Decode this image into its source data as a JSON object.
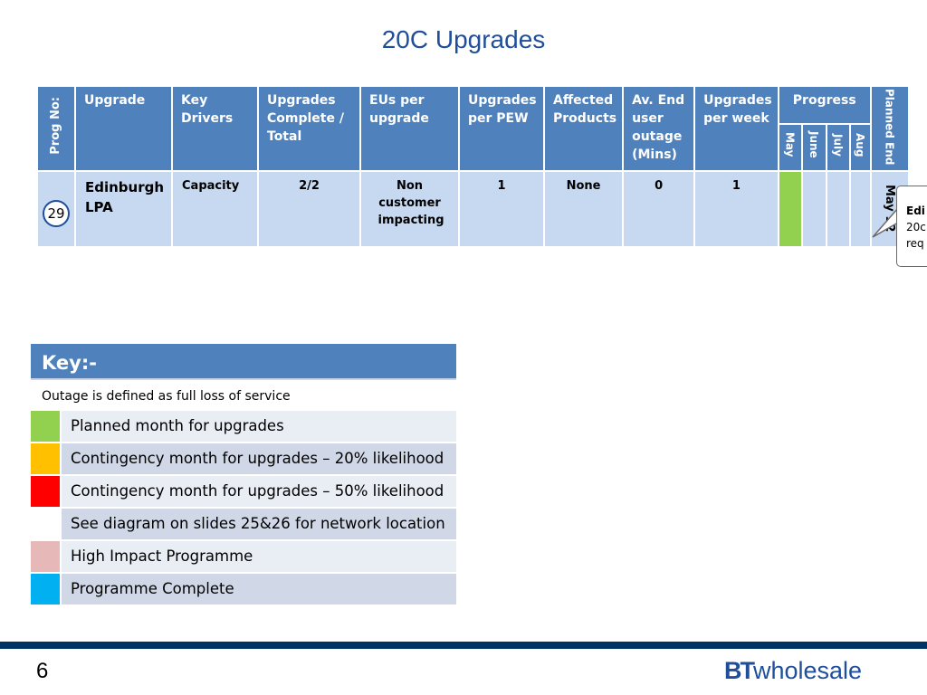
{
  "title": "20C Upgrades",
  "table": {
    "headers": {
      "prog_no": "Prog No:",
      "upgrade": "Upgrade",
      "key_drivers": "Key Drivers",
      "upgrades_complete": "Upgrades Complete / Total",
      "eus_per_upgrade": "EUs per upgrade",
      "upgrades_per_pew": "Upgrades per PEW",
      "affected_products": "Affected Products",
      "av_end_user_outage": "Av. End user outage (Mins)",
      "upgrades_per_week": "Upgrades per week",
      "progress": "Progress",
      "months": [
        "May",
        "June",
        "July",
        "Aug"
      ],
      "planned_end": "Planned End"
    },
    "rows": [
      {
        "prog_no": "29",
        "upgrade": "Edinburgh LPA",
        "key_drivers": "Capacity",
        "upgrades_complete": "2/2",
        "eus_per_upgrade": "Non customer impacting",
        "upgrades_per_pew": "1",
        "affected_products": "None",
        "av_end_user_outage": "0",
        "upgrades_per_week": "1",
        "progress": [
          "planned",
          "",
          "",
          ""
        ],
        "planned_end": "May 12"
      }
    ]
  },
  "callout": {
    "line1": "Edi",
    "line2": "20c",
    "line3": "req"
  },
  "key": {
    "title": "Key:-",
    "definition": "Outage is defined as full loss of service",
    "items": [
      {
        "label": "Planned month for upgrades",
        "color": "#92d050"
      },
      {
        "label": "Contingency month for upgrades – 20% likelihood",
        "color": "#ffc000"
      },
      {
        "label": "Contingency month for upgrades – 50% likelihood",
        "color": "#ff0000"
      },
      {
        "label": "See diagram on slides 25&26 for network location",
        "color": ""
      },
      {
        "label": "High Impact Programme",
        "color": "#e6b9b8"
      },
      {
        "label": "Programme Complete",
        "color": "#00b0f0"
      }
    ]
  },
  "footer": {
    "page_number": "6",
    "brand_bt": "BT",
    "brand_word": "wholesale"
  }
}
